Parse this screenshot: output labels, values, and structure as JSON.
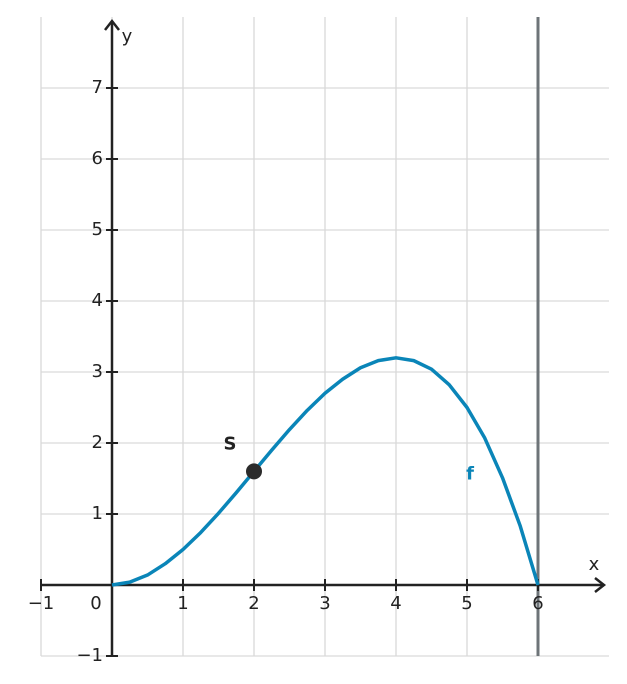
{
  "chart_data": {
    "type": "line",
    "x_label": "x",
    "y_label": "y",
    "x": [
      0,
      0.25,
      0.5,
      0.75,
      1,
      1.25,
      1.5,
      1.75,
      2,
      2.25,
      2.5,
      2.75,
      3,
      3.25,
      3.5,
      3.75,
      4,
      4.25,
      4.5,
      4.75,
      5,
      5.25,
      5.5,
      5.75,
      6
    ],
    "series": [
      {
        "name": "f",
        "color": "#0a85b8",
        "values": [
          0,
          0.04,
          0.14,
          0.3,
          0.5,
          0.74,
          1.01,
          1.3,
          1.6,
          1.9,
          2.19,
          2.46,
          2.7,
          2.9,
          3.06,
          3.16,
          3.2,
          3.16,
          3.04,
          2.82,
          2.5,
          2.07,
          1.51,
          0.83,
          0
        ]
      }
    ],
    "points": [
      {
        "label": "S",
        "x": 2,
        "y": 1.6,
        "color": "#2b2b2b"
      }
    ],
    "vertical_line_x": 6,
    "xlim": [
      -1,
      7
    ],
    "ylim": [
      -1,
      8
    ],
    "xticks": [
      {
        "value": -1,
        "label": "−1"
      },
      0,
      1,
      2,
      3,
      4,
      5,
      6
    ],
    "yticks": [
      {
        "value": -1,
        "label": "−1"
      },
      1,
      2,
      3,
      4,
      5,
      6,
      7
    ],
    "grid": true
  }
}
